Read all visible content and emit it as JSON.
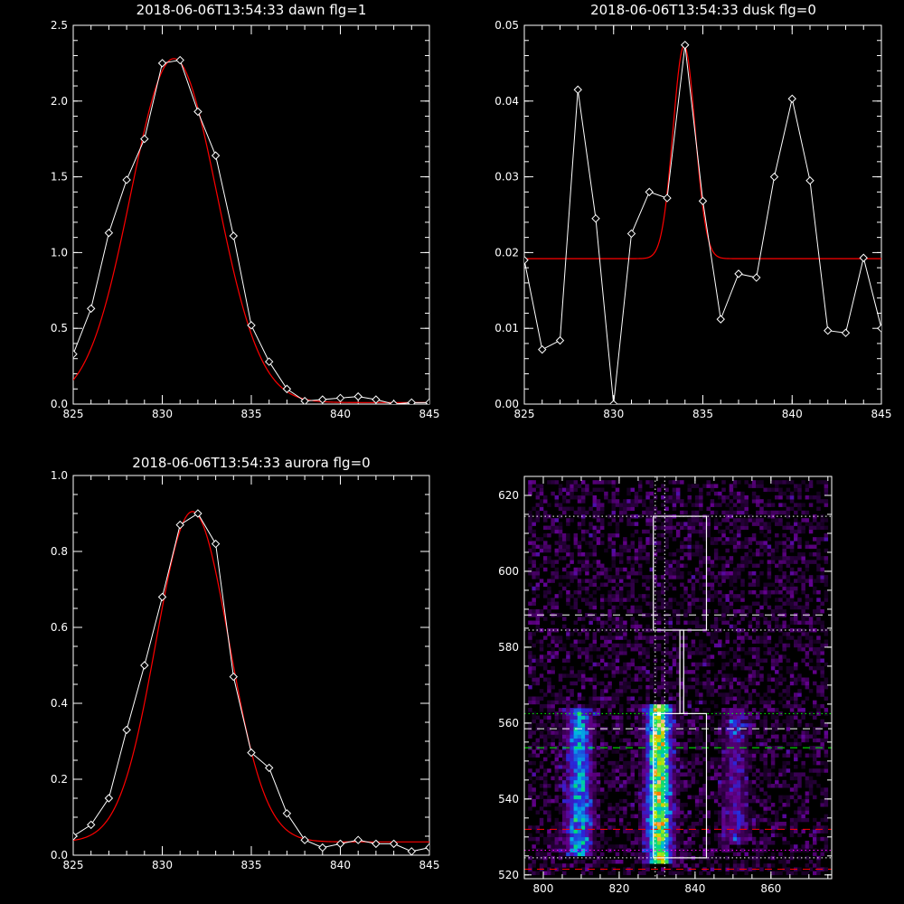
{
  "chart_data": [
    {
      "type": "line",
      "title": "2018-06-06T13:54:33 dawn flg=1",
      "xlim": [
        825,
        845
      ],
      "ylim": [
        0,
        2.5
      ],
      "x_ticks": [
        "825",
        "830",
        "835",
        "840",
        "845"
      ],
      "y_ticks": [
        "0.0",
        "0.5",
        "1.0",
        "1.5",
        "2.0",
        "2.5"
      ],
      "series": [
        {
          "kind": "data",
          "color": "#ffffff",
          "marker": "diamond",
          "x": [
            825,
            826,
            827,
            828,
            829,
            830,
            831,
            832,
            833,
            834,
            835,
            836,
            837,
            838,
            839,
            840,
            841,
            842,
            843,
            844,
            845
          ],
          "y": [
            0.33,
            0.63,
            1.13,
            1.48,
            1.75,
            2.25,
            2.27,
            1.93,
            1.64,
            1.11,
            0.52,
            0.28,
            0.1,
            0.02,
            0.03,
            0.04,
            0.05,
            0.03,
            0.0,
            0.01,
            0.01
          ]
        },
        {
          "kind": "gaussian-fit",
          "color": "#ff0000",
          "amplitude": 2.27,
          "center": 830.65,
          "sigma": 2.42,
          "offset": 0.01
        }
      ]
    },
    {
      "type": "line",
      "title": "2018-06-06T13:54:33 dusk flg=0",
      "xlim": [
        825,
        845
      ],
      "ylim": [
        0,
        0.05
      ],
      "x_ticks": [
        "825",
        "830",
        "835",
        "840",
        "845"
      ],
      "y_ticks": [
        "0.00",
        "0.01",
        "0.02",
        "0.03",
        "0.04",
        "0.05"
      ],
      "series": [
        {
          "kind": "data",
          "color": "#ffffff",
          "marker": "diamond",
          "x": [
            825,
            826,
            827,
            828,
            829,
            830,
            831,
            832,
            833,
            834,
            835,
            836,
            837,
            838,
            839,
            840,
            841,
            842,
            843,
            844,
            845
          ],
          "y": [
            0.019,
            0.0072,
            0.0084,
            0.0415,
            0.0245,
            0.0,
            0.0225,
            0.028,
            0.0272,
            0.0474,
            0.0268,
            0.0112,
            0.0172,
            0.0167,
            0.03,
            0.0403,
            0.0295,
            0.0097,
            0.0094,
            0.0193,
            0.01
          ]
        },
        {
          "kind": "gaussian-fit",
          "color": "#ff0000",
          "amplitude": 0.0281,
          "center": 833.95,
          "sigma": 0.62,
          "offset": 0.0192
        }
      ]
    },
    {
      "type": "line",
      "title": "2018-06-06T13:54:33 aurora flg=0",
      "xlim": [
        825,
        845
      ],
      "ylim": [
        0,
        1.0
      ],
      "x_ticks": [
        "825",
        "830",
        "835",
        "840",
        "845"
      ],
      "y_ticks": [
        "0.0",
        "0.2",
        "0.4",
        "0.6",
        "0.8",
        "1.0"
      ],
      "series": [
        {
          "kind": "data",
          "color": "#ffffff",
          "marker": "diamond",
          "x": [
            825,
            826,
            827,
            828,
            829,
            830,
            831,
            832,
            833,
            834,
            835,
            836,
            837,
            838,
            839,
            840,
            841,
            842,
            843,
            844,
            845
          ],
          "y": [
            0.05,
            0.08,
            0.15,
            0.33,
            0.5,
            0.68,
            0.87,
            0.9,
            0.82,
            0.47,
            0.27,
            0.23,
            0.11,
            0.04,
            0.02,
            0.03,
            0.04,
            0.03,
            0.03,
            0.01,
            0.02
          ]
        },
        {
          "kind": "gaussian-fit",
          "color": "#ff0000",
          "amplitude": 0.87,
          "center": 831.7,
          "sigma": 2.05,
          "offset": 0.035
        }
      ]
    },
    {
      "type": "heatmap",
      "title": "",
      "xlim": [
        795,
        876
      ],
      "ylim": [
        519,
        625
      ],
      "x_ticks": [
        "800",
        "820",
        "840",
        "860"
      ],
      "y_ticks": [
        "520",
        "540",
        "560",
        "580",
        "600",
        "620"
      ],
      "bands": [
        {
          "center": 809,
          "width": 5,
          "ymin": 525,
          "ymax": 563,
          "intensity": 0.55
        },
        {
          "center": 830,
          "width": 5,
          "ymin": 523,
          "ymax": 564,
          "intensity": 0.85
        },
        {
          "center": 850,
          "width": 5,
          "ymin": 528,
          "ymax": 563,
          "intensity": 0.25
        }
      ],
      "hot_spots": [
        [
          830,
          559
        ],
        [
          831,
          558
        ],
        [
          829,
          557
        ],
        [
          830,
          540
        ],
        [
          829,
          553
        ]
      ],
      "boxes": [
        {
          "x0": 829,
          "x1": 843,
          "y0": 584.5,
          "y1": 614.5
        },
        {
          "x0": 829,
          "x1": 843,
          "y0": 524.5,
          "y1": 562.5
        }
      ],
      "connector": {
        "x0": 836,
        "x1": 837,
        "y0": 562.5,
        "y1": 584.5
      },
      "hlines": [
        {
          "y": 614.5,
          "color": "#ffffff",
          "style": "dotted"
        },
        {
          "y": 588.5,
          "color": "#ffffff",
          "style": "dashed"
        },
        {
          "y": 584.5,
          "color": "#ffffff",
          "style": "dotted"
        },
        {
          "y": 562.5,
          "color": "#00ff00",
          "style": "dotted"
        },
        {
          "y": 558.5,
          "color": "#ffffff",
          "style": "dashed"
        },
        {
          "y": 553.5,
          "color": "#00ff00",
          "style": "dashed"
        },
        {
          "y": 532.0,
          "color": "#ff0000",
          "style": "dashed"
        },
        {
          "y": 526.5,
          "color": "#ff00ff",
          "style": "dotted"
        },
        {
          "y": 524.5,
          "color": "#ffffff",
          "style": "dotted"
        },
        {
          "y": 521.5,
          "color": "#ff0000",
          "style": "dashed"
        }
      ],
      "vlines": [
        {
          "x": 829.5,
          "color": "#ffffff",
          "style": "dotted"
        },
        {
          "x": 832.0,
          "color": "#ffffff",
          "style": "dotted"
        }
      ]
    }
  ]
}
